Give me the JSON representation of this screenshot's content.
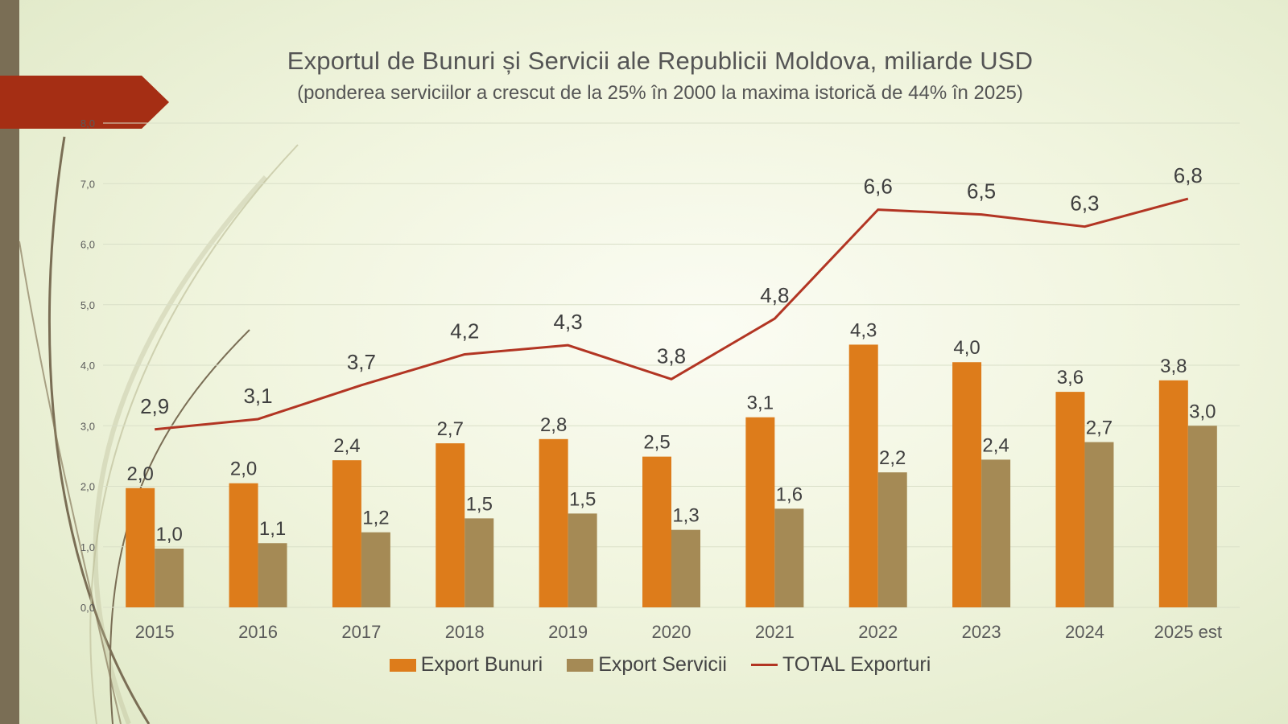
{
  "colors": {
    "export_bunuri": "#dd7c1b",
    "export_servicii": "#a58a55",
    "total": "#b23523",
    "gridline": "#d9dfc8",
    "axis_text": "#5a5a5a",
    "label_text": "#3f3f3f"
  },
  "chart_data": {
    "type": "bar",
    "title": "Exportul de Bunuri și Servicii ale Republicii Moldova, miliarde USD",
    "subtitle": "(ponderea serviciilor a crescut de la 25% în 2000 la maxima istorică de 44% în 2025)",
    "categories": [
      "2015",
      "2016",
      "2017",
      "2018",
      "2019",
      "2020",
      "2021",
      "2022",
      "2023",
      "2024",
      "2025 est"
    ],
    "series": [
      {
        "name": "Export Bunuri",
        "kind": "bar",
        "values": [
          1.97,
          2.05,
          2.43,
          2.71,
          2.78,
          2.49,
          3.14,
          4.34,
          4.05,
          3.56,
          3.75
        ],
        "labels": [
          "2,0",
          "2,0",
          "2,4",
          "2,7",
          "2,8",
          "2,5",
          "3,1",
          "4,3",
          "4,0",
          "3,6",
          "3,8"
        ]
      },
      {
        "name": "Export Servicii",
        "kind": "bar",
        "values": [
          0.97,
          1.06,
          1.24,
          1.47,
          1.55,
          1.28,
          1.63,
          2.23,
          2.44,
          2.73,
          3.0
        ],
        "labels": [
          "1,0",
          "1,1",
          "1,2",
          "1,5",
          "1,5",
          "1,3",
          "1,6",
          "2,2",
          "2,4",
          "2,7",
          "3,0"
        ]
      },
      {
        "name": "TOTAL Exporturi",
        "kind": "line",
        "values": [
          2.94,
          3.11,
          3.67,
          4.18,
          4.33,
          3.77,
          4.77,
          6.57,
          6.49,
          6.29,
          6.75
        ],
        "labels": [
          "2,9",
          "3,1",
          "3,7",
          "4,2",
          "4,3",
          "3,8",
          "4,8",
          "6,6",
          "6,5",
          "6,3",
          "6,8"
        ]
      }
    ],
    "ylim": [
      0,
      8
    ],
    "yticks": [
      "0,0",
      "1,0",
      "2,0",
      "3,0",
      "4,0",
      "5,0",
      "6,0",
      "7,0",
      "8,0"
    ],
    "grid": true,
    "legend_position": "bottom"
  }
}
